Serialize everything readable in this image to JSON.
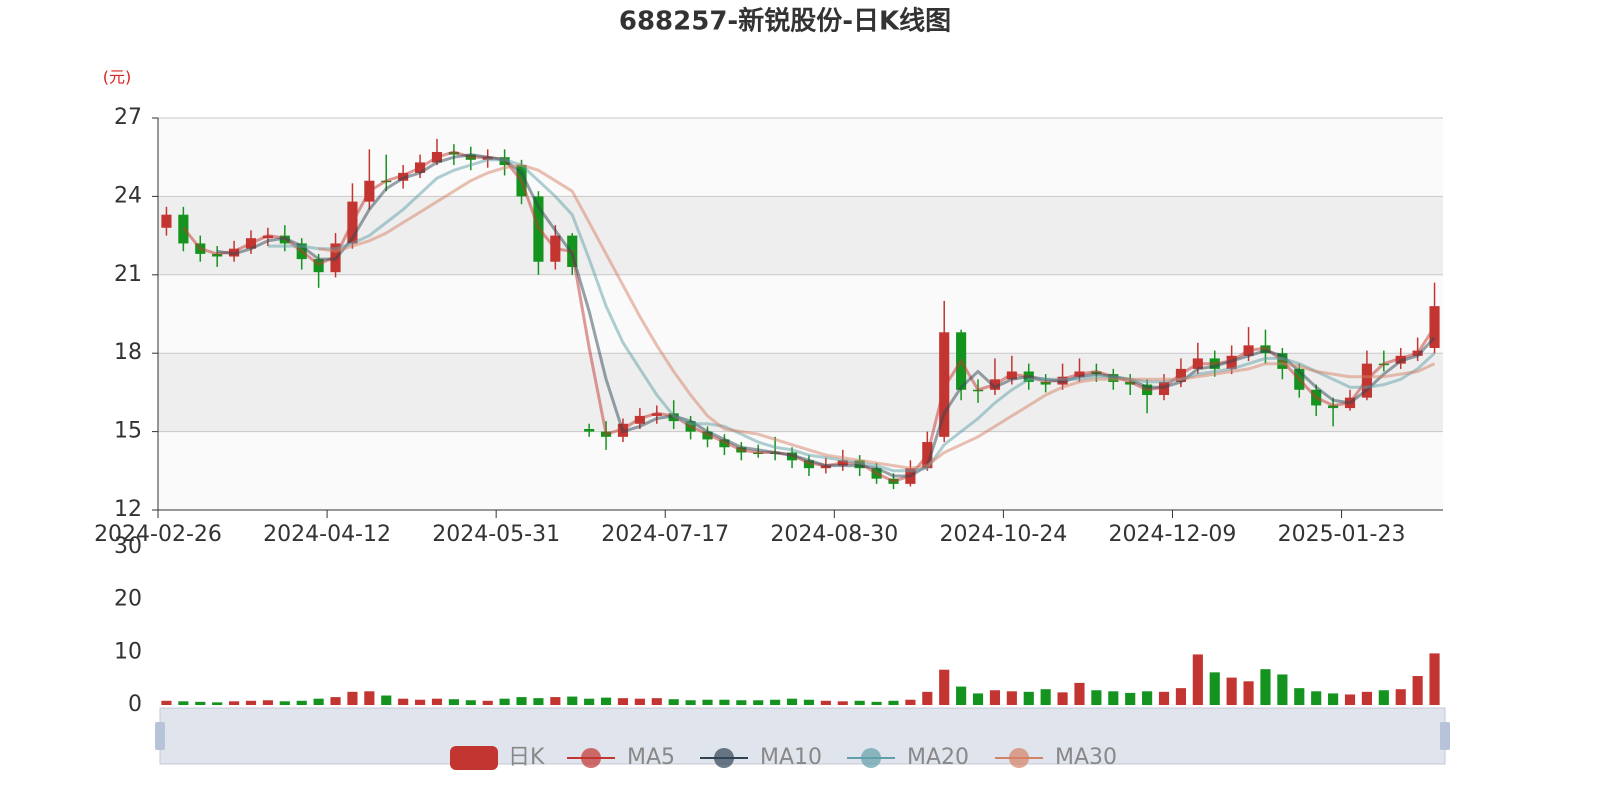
{
  "chart_data": {
    "type": "candlestick",
    "title": "688257-新锐股份-日K线图",
    "y_unit_label": "(元)",
    "candle_name": "日K",
    "up_color": "#c23531",
    "down_color": "#14941f",
    "grid": true,
    "legend": "bottom",
    "categories": [
      "2024-02-26",
      null,
      null,
      null,
      null,
      null,
      null,
      null,
      null,
      null,
      "2024-04-12",
      null,
      null,
      null,
      null,
      null,
      null,
      null,
      null,
      null,
      "2024-05-31",
      null,
      null,
      null,
      null,
      null,
      null,
      null,
      null,
      null,
      "2024-07-17",
      null,
      null,
      null,
      null,
      null,
      null,
      null,
      null,
      null,
      "2024-08-30",
      null,
      null,
      null,
      null,
      null,
      null,
      null,
      null,
      null,
      "2024-10-24",
      null,
      null,
      null,
      null,
      null,
      null,
      null,
      null,
      null,
      "2024-12-09",
      null,
      null,
      null,
      null,
      null,
      null,
      null,
      null,
      null,
      "2025-01-23",
      null,
      null,
      null,
      null,
      null
    ],
    "ohlc": [
      [
        22.8,
        23.3,
        22.5,
        23.6
      ],
      [
        23.3,
        22.2,
        21.9,
        23.6
      ],
      [
        22.2,
        21.8,
        21.5,
        22.5
      ],
      [
        21.8,
        21.7,
        21.3,
        22.1
      ],
      [
        21.7,
        22.0,
        21.5,
        22.3
      ],
      [
        22.0,
        22.4,
        21.8,
        22.7
      ],
      [
        22.4,
        22.5,
        22.1,
        22.8
      ],
      [
        22.5,
        22.2,
        21.9,
        22.9
      ],
      [
        22.2,
        21.6,
        21.2,
        22.4
      ],
      [
        21.6,
        21.1,
        20.5,
        21.8
      ],
      [
        21.1,
        22.2,
        20.9,
        22.6
      ],
      [
        22.2,
        23.8,
        22.0,
        24.5
      ],
      [
        23.8,
        24.6,
        23.5,
        25.8
      ],
      [
        24.6,
        24.6,
        24.2,
        25.6
      ],
      [
        24.6,
        24.9,
        24.3,
        25.2
      ],
      [
        24.9,
        25.3,
        24.7,
        25.6
      ],
      [
        25.3,
        25.7,
        25.2,
        26.2
      ],
      [
        25.7,
        25.6,
        25.2,
        26.0
      ],
      [
        25.6,
        25.4,
        25.0,
        25.9
      ],
      [
        25.4,
        25.5,
        25.1,
        25.8
      ],
      [
        25.5,
        25.2,
        24.8,
        25.8
      ],
      [
        25.2,
        24.0,
        23.7,
        25.4
      ],
      [
        24.0,
        21.5,
        21.0,
        24.2
      ],
      [
        21.5,
        22.5,
        21.2,
        22.9
      ],
      [
        22.5,
        21.3,
        21.0,
        22.6
      ],
      [
        15.1,
        15.0,
        14.8,
        15.3
      ],
      [
        15.0,
        14.8,
        14.3,
        15.4
      ],
      [
        14.8,
        15.3,
        14.6,
        15.5
      ],
      [
        15.3,
        15.6,
        15.1,
        15.9
      ],
      [
        15.6,
        15.7,
        15.3,
        16.0
      ],
      [
        15.7,
        15.4,
        15.1,
        16.2
      ],
      [
        15.4,
        15.0,
        14.7,
        15.6
      ],
      [
        15.0,
        14.7,
        14.4,
        15.2
      ],
      [
        14.7,
        14.4,
        14.1,
        14.9
      ],
      [
        14.4,
        14.2,
        13.9,
        14.6
      ],
      [
        14.2,
        14.2,
        14.0,
        14.5
      ],
      [
        14.2,
        14.2,
        13.9,
        14.8
      ],
      [
        14.2,
        13.9,
        13.6,
        14.4
      ],
      [
        13.9,
        13.6,
        13.3,
        14.1
      ],
      [
        13.6,
        13.7,
        13.4,
        14.0
      ],
      [
        13.7,
        13.9,
        13.5,
        14.3
      ],
      [
        13.9,
        13.6,
        13.3,
        14.1
      ],
      [
        13.6,
        13.2,
        13.0,
        13.8
      ],
      [
        13.2,
        13.0,
        12.8,
        13.4
      ],
      [
        13.0,
        13.6,
        12.9,
        13.9
      ],
      [
        13.6,
        14.6,
        13.5,
        15.0
      ],
      [
        14.8,
        18.8,
        14.6,
        20.0
      ],
      [
        18.8,
        16.6,
        16.2,
        18.9
      ],
      [
        16.6,
        16.6,
        16.1,
        17.0
      ],
      [
        16.6,
        17.0,
        16.4,
        17.8
      ],
      [
        17.0,
        17.3,
        16.8,
        17.9
      ],
      [
        17.3,
        16.9,
        16.6,
        17.6
      ],
      [
        16.9,
        16.8,
        16.5,
        17.2
      ],
      [
        16.8,
        17.1,
        16.6,
        17.6
      ],
      [
        17.1,
        17.3,
        16.9,
        17.8
      ],
      [
        17.3,
        17.2,
        16.9,
        17.6
      ],
      [
        17.2,
        16.9,
        16.6,
        17.4
      ],
      [
        16.9,
        16.8,
        16.4,
        17.2
      ],
      [
        16.8,
        16.4,
        15.7,
        17.0
      ],
      [
        16.4,
        16.9,
        16.2,
        17.2
      ],
      [
        16.9,
        17.4,
        16.7,
        17.8
      ],
      [
        17.4,
        17.8,
        17.2,
        18.4
      ],
      [
        17.8,
        17.4,
        17.1,
        18.1
      ],
      [
        17.4,
        17.9,
        17.2,
        18.3
      ],
      [
        17.9,
        18.3,
        17.7,
        19.0
      ],
      [
        18.3,
        18.0,
        17.6,
        18.9
      ],
      [
        18.0,
        17.4,
        17.0,
        18.2
      ],
      [
        17.4,
        16.6,
        16.3,
        17.6
      ],
      [
        16.6,
        16.0,
        15.6,
        16.8
      ],
      [
        16.0,
        15.9,
        15.2,
        16.3
      ],
      [
        15.9,
        16.3,
        15.8,
        16.6
      ],
      [
        16.3,
        17.6,
        16.2,
        18.1
      ],
      [
        17.6,
        17.6,
        17.3,
        18.1
      ],
      [
        17.6,
        17.9,
        17.4,
        18.2
      ],
      [
        17.9,
        18.1,
        17.7,
        18.6
      ],
      [
        18.2,
        19.8,
        18.0,
        20.7
      ]
    ],
    "ylim": [
      12,
      27
    ],
    "yticks": [
      12,
      15,
      18,
      21,
      24,
      27
    ],
    "series": [
      {
        "name": "MA5",
        "color": "#c23531",
        "values": [
          null,
          22.8,
          22.0,
          21.8,
          21.9,
          22.2,
          22.5,
          22.4,
          21.9,
          21.4,
          21.7,
          23.0,
          24.2,
          24.6,
          24.8,
          25.1,
          25.5,
          25.7,
          25.5,
          25.5,
          25.4,
          24.6,
          22.8,
          22.0,
          21.9,
          18.2,
          14.9,
          15.1,
          15.5,
          15.7,
          15.6,
          15.2,
          14.9,
          14.6,
          14.3,
          14.2,
          14.2,
          14.1,
          13.8,
          13.7,
          13.8,
          13.8,
          13.4,
          13.1,
          13.3,
          14.1,
          16.7,
          17.7,
          16.6,
          16.8,
          17.2,
          17.1,
          16.9,
          17.0,
          17.2,
          17.3,
          17.1,
          16.9,
          16.6,
          16.7,
          17.2,
          17.6,
          17.6,
          17.7,
          18.1,
          18.2,
          17.7,
          17.0,
          16.3,
          16.0,
          16.1,
          17.0,
          17.6,
          17.8,
          18.0,
          19.0
        ]
      },
      {
        "name": "MA10",
        "color": "#2f4554",
        "values": [
          null,
          null,
          null,
          21.9,
          21.8,
          22.0,
          22.3,
          22.4,
          22.1,
          21.6,
          21.6,
          22.4,
          23.5,
          24.3,
          24.7,
          24.9,
          25.3,
          25.5,
          25.6,
          25.5,
          25.4,
          24.9,
          23.6,
          22.7,
          21.8,
          19.6,
          17.0,
          15.0,
          15.2,
          15.5,
          15.6,
          15.4,
          15.0,
          14.7,
          14.4,
          14.3,
          14.2,
          14.1,
          13.9,
          13.7,
          13.7,
          13.7,
          13.6,
          13.3,
          13.3,
          13.7,
          15.7,
          16.7,
          17.3,
          16.7,
          17.0,
          17.1,
          17.0,
          16.9,
          17.1,
          17.2,
          17.1,
          17.0,
          16.7,
          16.7,
          16.9,
          17.4,
          17.5,
          17.7,
          17.9,
          18.1,
          17.9,
          17.3,
          16.7,
          16.2,
          16.1,
          16.6,
          17.2,
          17.7,
          17.9,
          18.6
        ]
      },
      {
        "name": "MA20",
        "color": "#61a0a8",
        "values": [
          null,
          null,
          null,
          null,
          null,
          null,
          22.1,
          22.1,
          22.1,
          22.0,
          22.0,
          22.2,
          22.5,
          23.0,
          23.5,
          24.1,
          24.7,
          25.0,
          25.2,
          25.4,
          25.4,
          25.2,
          24.6,
          24.0,
          23.3,
          21.6,
          19.8,
          18.4,
          17.4,
          16.4,
          15.6,
          15.3,
          15.3,
          15.2,
          14.9,
          14.6,
          14.4,
          14.3,
          14.1,
          14.0,
          13.9,
          13.8,
          13.7,
          13.5,
          13.5,
          13.6,
          14.5,
          15.0,
          15.5,
          16.1,
          16.6,
          17.0,
          17.0,
          17.0,
          17.0,
          17.1,
          17.1,
          17.0,
          16.9,
          16.9,
          17.0,
          17.2,
          17.3,
          17.4,
          17.6,
          17.8,
          17.8,
          17.6,
          17.3,
          17.0,
          16.7,
          16.7,
          16.8,
          17.0,
          17.4,
          18.0
        ]
      },
      {
        "name": "MA30",
        "color": "#d48265",
        "values": [
          null,
          null,
          null,
          null,
          null,
          null,
          null,
          null,
          null,
          22.0,
          21.9,
          22.1,
          22.3,
          22.6,
          23.0,
          23.4,
          23.8,
          24.2,
          24.6,
          24.9,
          25.1,
          25.2,
          25.0,
          24.6,
          24.2,
          23.0,
          21.8,
          20.6,
          19.4,
          18.3,
          17.3,
          16.4,
          15.6,
          15.1,
          15.0,
          14.9,
          14.7,
          14.5,
          14.3,
          14.1,
          14.0,
          13.9,
          13.8,
          13.7,
          13.6,
          13.7,
          14.2,
          14.5,
          14.8,
          15.2,
          15.6,
          16.0,
          16.4,
          16.7,
          16.9,
          17.0,
          17.0,
          17.0,
          17.0,
          17.0,
          17.0,
          17.1,
          17.2,
          17.3,
          17.4,
          17.6,
          17.6,
          17.5,
          17.3,
          17.2,
          17.1,
          17.1,
          17.1,
          17.2,
          17.3,
          17.6
        ]
      }
    ],
    "volume": {
      "values": [
        0.8,
        0.7,
        0.6,
        0.5,
        0.7,
        0.8,
        0.9,
        0.7,
        0.8,
        1.2,
        1.5,
        2.5,
        2.6,
        1.8,
        1.2,
        1.0,
        1.2,
        1.1,
        0.9,
        0.8,
        1.2,
        1.5,
        1.3,
        1.5,
        1.6,
        1.2,
        1.4,
        1.3,
        1.2,
        1.3,
        1.1,
        0.9,
        1.0,
        1.0,
        0.9,
        0.9,
        1.0,
        1.2,
        1.0,
        0.8,
        0.7,
        0.8,
        0.6,
        0.8,
        1.0,
        2.5,
        6.7,
        3.5,
        2.2,
        2.8,
        2.6,
        2.5,
        3.0,
        2.4,
        4.2,
        2.8,
        2.6,
        2.3,
        2.6,
        2.5,
        3.2,
        9.6,
        6.2,
        5.2,
        4.5,
        6.8,
        5.8,
        3.2,
        2.6,
        2.2,
        2.0,
        2.5,
        2.8,
        3.0,
        5.5,
        9.8
      ],
      "ylim": [
        0,
        30
      ],
      "yticks": [
        0,
        10,
        20,
        30
      ]
    }
  }
}
